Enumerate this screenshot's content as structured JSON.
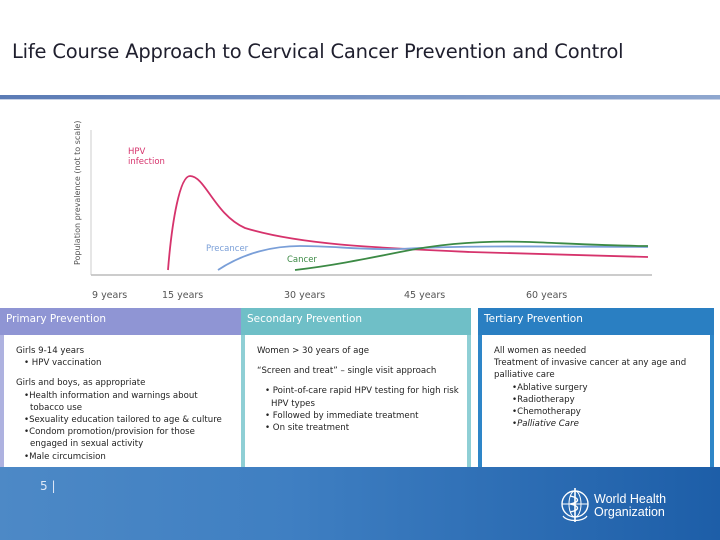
{
  "header": {
    "title": "Life Course Approach to Cervical Cancer Prevention and Control"
  },
  "chart_data": {
    "type": "line",
    "ylabel": "Population prevalence (not to scale)",
    "x_ticks": [
      "9 years",
      "15 years",
      "30 years",
      "45 years",
      "60 years"
    ],
    "series": [
      {
        "name": "HPV infection",
        "color": "#d6336c"
      },
      {
        "name": "Precancer",
        "color": "#7a9fd8"
      },
      {
        "name": "Cancer",
        "color": "#3c8a45"
      }
    ]
  },
  "panels": [
    {
      "heading": "Primary Prevention",
      "lines": [
        {
          "text": "Girls 9-14 years",
          "style": "head"
        },
        {
          "text": "• HPV vaccination",
          "style": "bullet"
        },
        {
          "text": "",
          "style": "gap"
        },
        {
          "text": "Girls and boys, as appropriate",
          "style": "head"
        },
        {
          "text": "•Health information and warnings about tobacco use",
          "style": "ind"
        },
        {
          "text": "•Sexuality education tailored to age & culture",
          "style": "ind"
        },
        {
          "text": "•Condom promotion/provision for those engaged in sexual activity",
          "style": "ind"
        },
        {
          "text": "•Male circumcision",
          "style": "ind"
        }
      ]
    },
    {
      "heading": "Secondary Prevention",
      "lines": [
        {
          "text": "Women > 30 years of age",
          "style": "head"
        },
        {
          "text": "",
          "style": "gap"
        },
        {
          "text": "“Screen and treat” – single visit approach",
          "style": "head"
        },
        {
          "text": "",
          "style": "gap"
        },
        {
          "text": "•   Point-of-care rapid HPV testing for high risk HPV types",
          "style": "ind"
        },
        {
          "text": "•   Followed by immediate treatment",
          "style": "ind"
        },
        {
          "text": "•   On site treatment",
          "style": "ind"
        }
      ]
    },
    {
      "heading": "Tertiary Prevention",
      "lines": [
        {
          "text": "All women as needed",
          "style": "head"
        },
        {
          "text": "Treatment of invasive cancer at any age and palliative care",
          "style": "head"
        },
        {
          "text": "•Ablative surgery",
          "style": "ind2"
        },
        {
          "text": "•Radiotherapy",
          "style": "ind2"
        },
        {
          "text": "•Chemotherapy",
          "style": "ind2"
        },
        {
          "text": "•Palliative Care",
          "style": "ind2i"
        }
      ]
    }
  ],
  "footer": {
    "page_number": "5 |",
    "org_line1": "World Health",
    "org_line2": "Organization"
  }
}
